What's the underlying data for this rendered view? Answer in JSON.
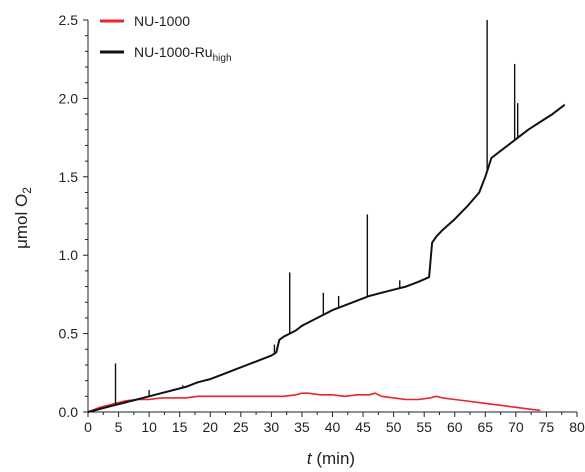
{
  "chart_data": {
    "type": "line",
    "title": "",
    "xlabel_italic": "t",
    "xlabel_rest": " (min)",
    "ylabel_main": "μmol O",
    "ylabel_sub": "2",
    "xlim": [
      0,
      80
    ],
    "ylim": [
      0,
      2.5
    ],
    "xticks": [
      0,
      5,
      10,
      15,
      20,
      25,
      30,
      35,
      40,
      45,
      50,
      55,
      60,
      65,
      70,
      75,
      80
    ],
    "yticks": [
      0.0,
      0.5,
      1.0,
      1.5,
      2.0,
      2.5
    ],
    "xtick_labels": [
      "0",
      "5",
      "10",
      "15",
      "20",
      "25",
      "30",
      "35",
      "40",
      "45",
      "50",
      "55",
      "60",
      "65",
      "70",
      "75",
      "80"
    ],
    "ytick_labels": [
      "0.0",
      "0.5",
      "1.0",
      "1.5",
      "2.0",
      "2.5"
    ],
    "grid": false,
    "legend_position": "top-left",
    "series": [
      {
        "name": "NU-1000",
        "color": "#e8262c",
        "x": [
          0,
          2,
          4,
          6,
          8,
          10,
          12,
          14,
          16,
          18,
          20,
          22,
          24,
          26,
          28,
          30,
          32,
          34,
          35,
          36,
          38,
          40,
          42,
          44,
          46,
          47,
          48,
          50,
          52,
          54,
          56,
          57,
          58,
          60,
          62,
          64,
          66,
          68,
          70,
          72,
          74
        ],
        "y": [
          0.0,
          0.03,
          0.05,
          0.07,
          0.08,
          0.08,
          0.09,
          0.09,
          0.09,
          0.1,
          0.1,
          0.1,
          0.1,
          0.1,
          0.1,
          0.1,
          0.1,
          0.11,
          0.12,
          0.12,
          0.11,
          0.11,
          0.1,
          0.11,
          0.11,
          0.12,
          0.1,
          0.09,
          0.08,
          0.08,
          0.09,
          0.1,
          0.09,
          0.08,
          0.07,
          0.06,
          0.05,
          0.04,
          0.03,
          0.02,
          0.01
        ]
      },
      {
        "name_main": "NU-1000-Ru",
        "name_sub": "high",
        "color": "#111111",
        "x": [
          0,
          2,
          4,
          6,
          8,
          10,
          12,
          14,
          16,
          18,
          20,
          22,
          24,
          26,
          28,
          30,
          30.8,
          31.3,
          32,
          33,
          34,
          35,
          36,
          38,
          40,
          42,
          44,
          46,
          48,
          50,
          52,
          54,
          55.8,
          56.3,
          57,
          58,
          60,
          62,
          64,
          65,
          66,
          68,
          70,
          72,
          74,
          76,
          78
        ],
        "y": [
          0.0,
          0.02,
          0.04,
          0.06,
          0.08,
          0.1,
          0.12,
          0.14,
          0.16,
          0.19,
          0.21,
          0.24,
          0.27,
          0.3,
          0.33,
          0.36,
          0.38,
          0.46,
          0.48,
          0.5,
          0.52,
          0.55,
          0.57,
          0.61,
          0.65,
          0.68,
          0.71,
          0.74,
          0.76,
          0.78,
          0.8,
          0.83,
          0.86,
          1.08,
          1.12,
          1.16,
          1.23,
          1.31,
          1.4,
          1.5,
          1.62,
          1.68,
          1.74,
          1.8,
          1.85,
          1.9,
          1.96
        ],
        "spikes": [
          {
            "x": 4.5,
            "y": 0.31
          },
          {
            "x": 10.0,
            "y": 0.14
          },
          {
            "x": 15.5,
            "y": 0.17
          },
          {
            "x": 21.0,
            "y": 0.23
          },
          {
            "x": 30.5,
            "y": 0.43
          },
          {
            "x": 33.0,
            "y": 0.89
          },
          {
            "x": 38.5,
            "y": 0.76
          },
          {
            "x": 41.0,
            "y": 0.74
          },
          {
            "x": 45.7,
            "y": 1.26
          },
          {
            "x": 51.0,
            "y": 0.84
          },
          {
            "x": 65.3,
            "y": 2.5
          },
          {
            "x": 69.8,
            "y": 2.22
          },
          {
            "x": 70.3,
            "y": 1.97
          }
        ]
      }
    ]
  }
}
